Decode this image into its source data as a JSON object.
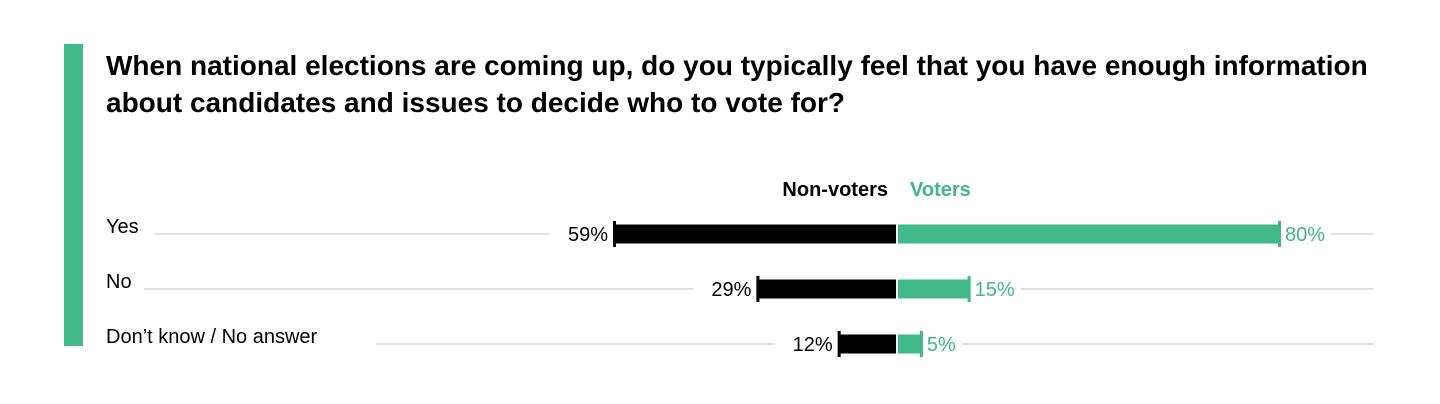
{
  "title": "When national elections are coming up, do you typically feel that you have enough information about candidates and issues to decide who to vote for?",
  "colors": {
    "accent": "#40b887",
    "non_voters": "#000000",
    "voters": "#40b887",
    "gridline": "#bfbfbf"
  },
  "chart_data": {
    "type": "bar",
    "orientation": "horizontal-diverging",
    "categories": [
      "Yes",
      "No",
      "Don’t know / No answer"
    ],
    "series": [
      {
        "name": "Non-voters",
        "values": [
          59,
          29,
          12
        ],
        "labels": [
          "59%",
          "29%",
          "12%"
        ],
        "direction": "left"
      },
      {
        "name": "Voters",
        "values": [
          80,
          15,
          5
        ],
        "labels": [
          "80%",
          "15%",
          "5%"
        ],
        "direction": "right"
      }
    ],
    "unit": "%",
    "legend_position": "top-center",
    "grid": false
  }
}
